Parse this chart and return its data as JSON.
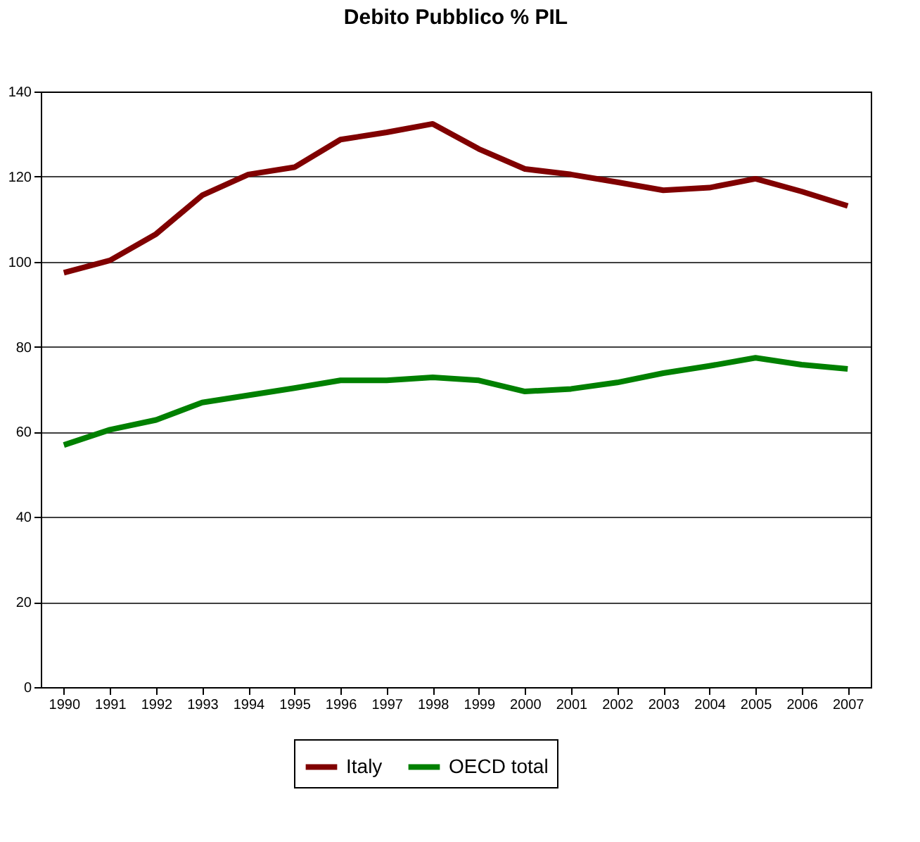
{
  "chart_data": {
    "type": "line",
    "title": "Debito Pubblico % PIL",
    "categories": [
      "1990",
      "1991",
      "1992",
      "1993",
      "1994",
      "1995",
      "1996",
      "1997",
      "1998",
      "1999",
      "2000",
      "2001",
      "2002",
      "2003",
      "2004",
      "2005",
      "2006",
      "2007"
    ],
    "series": [
      {
        "name": "Italy",
        "color": "#800000",
        "values": [
          97.4,
          100.3,
          106.5,
          115.6,
          120.5,
          122.2,
          128.7,
          130.4,
          132.4,
          126.5,
          121.8,
          120.5,
          118.7,
          116.8,
          117.4,
          119.5,
          116.5,
          113.1
        ]
      },
      {
        "name": "OECD total",
        "color": "#008000",
        "values": [
          56.9,
          60.5,
          62.8,
          66.9,
          68.6,
          70.3,
          72.1,
          72.1,
          72.8,
          72.1,
          69.5,
          70.1,
          71.6,
          73.8,
          75.5,
          77.4,
          75.8,
          74.8
        ]
      }
    ],
    "ylim": [
      0,
      140
    ],
    "yticks": [
      0,
      20,
      40,
      60,
      80,
      100,
      120,
      140
    ],
    "grid": "y",
    "legend": "bottom",
    "marker": "none",
    "line_style": "solid"
  }
}
